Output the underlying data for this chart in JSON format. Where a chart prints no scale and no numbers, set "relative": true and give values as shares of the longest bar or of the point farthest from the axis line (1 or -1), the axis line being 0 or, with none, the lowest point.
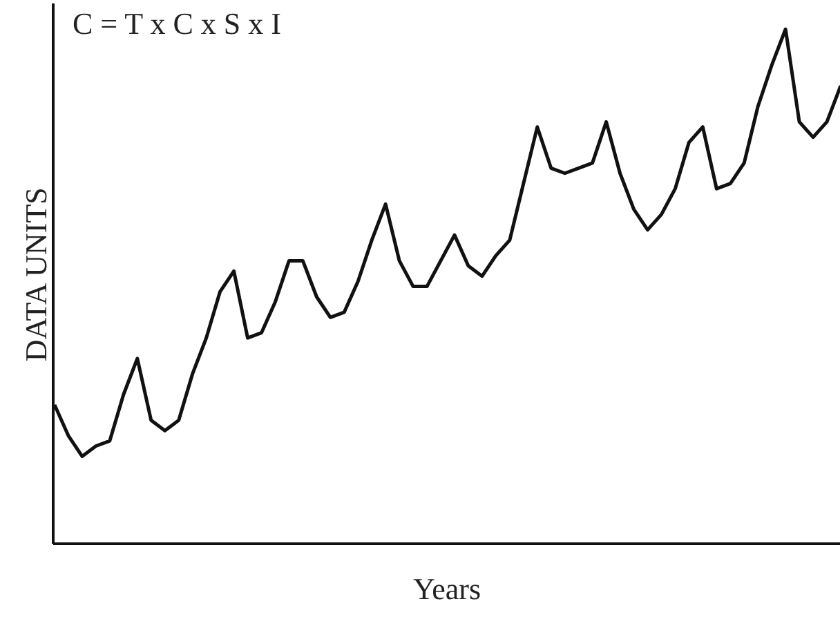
{
  "chart_data": {
    "type": "line",
    "relative": true,
    "title": "C = T x C x S x I",
    "xlabel": "Years",
    "ylabel": "DATA UNITS",
    "marker": "none",
    "line_style": "solid",
    "categories": [
      null,
      null,
      null,
      null,
      null,
      null,
      null,
      null,
      null,
      null,
      null,
      null,
      null,
      null,
      null,
      null,
      null,
      null,
      null,
      null,
      null,
      null,
      null,
      null,
      null,
      null,
      null,
      null,
      null,
      null,
      null,
      null,
      null,
      null,
      null,
      null,
      null,
      null,
      null,
      null,
      null,
      null,
      null,
      null,
      null,
      null,
      null,
      null,
      null,
      null,
      null,
      null,
      null,
      null,
      null,
      null,
      null,
      null
    ],
    "series": [
      {
        "color": "#111111",
        "values": [
          0.27,
          0.21,
          0.17,
          0.19,
          0.2,
          0.29,
          0.36,
          0.24,
          0.22,
          0.24,
          0.33,
          0.4,
          0.49,
          0.53,
          0.4,
          0.41,
          0.47,
          0.55,
          0.55,
          0.48,
          0.44,
          0.45,
          0.51,
          0.59,
          0.66,
          0.55,
          0.5,
          0.5,
          0.55,
          0.6,
          0.54,
          0.52,
          0.56,
          0.59,
          0.7,
          0.81,
          0.73,
          0.72,
          0.73,
          0.74,
          0.82,
          0.72,
          0.65,
          0.61,
          0.64,
          0.69,
          0.78,
          0.81,
          0.69,
          0.7,
          0.74,
          0.85,
          0.93,
          1,
          0.82,
          0.79,
          0.82,
          0.89
        ]
      }
    ]
  }
}
